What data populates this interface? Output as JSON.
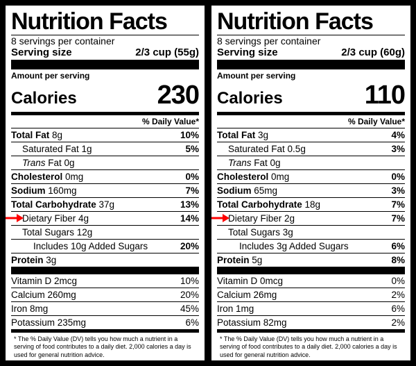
{
  "arrow_color": "#ff0000",
  "arrow_row_key": "fiber",
  "footnote": "* The % Daily Value (DV) tells you how much a nutrient in a serving of food contributes to a daily diet. 2,000 calories a day is used for general nutrition advice.",
  "labels": [
    {
      "title": "Nutrition Facts",
      "servings_per": "8 servings per container",
      "serving_size_label": "Serving size",
      "serving_size_value": "2/3 cup (55g)",
      "amount_per": "Amount per serving",
      "calories_label": "Calories",
      "calories": "230",
      "dv_header": "% Daily Value*",
      "rows": [
        {
          "k": "totfat",
          "bold": "Total Fat",
          "val": "8g",
          "pct": "10%"
        },
        {
          "k": "satfat",
          "indent": 1,
          "plain": "Saturated Fat 1g",
          "pct": "5%"
        },
        {
          "k": "trans",
          "indent": 1,
          "italic": "Trans",
          "plain_after": " Fat 0g"
        },
        {
          "k": "chol",
          "bold": "Cholesterol",
          "val": "0mg",
          "pct": "0%"
        },
        {
          "k": "sodium",
          "bold": "Sodium",
          "val": "160mg",
          "pct": "7%"
        },
        {
          "k": "carb",
          "bold": "Total Carbohydrate",
          "val": "37g",
          "pct": "13%"
        },
        {
          "k": "fiber",
          "indent": 1,
          "plain": "Dietary Fiber 4g",
          "pct": "14%"
        },
        {
          "k": "sugars",
          "indent": 1,
          "plain": "Total Sugars 12g"
        },
        {
          "k": "added",
          "indent": 2,
          "plain": "Includes 10g Added Sugars",
          "pct": "20%"
        },
        {
          "k": "protein",
          "bold": "Protein",
          "val": "3g"
        }
      ],
      "vitamins": [
        {
          "plain": "Vitamin D 2mcg",
          "pct": "10%"
        },
        {
          "plain": "Calcium 260mg",
          "pct": "20%"
        },
        {
          "plain": "Iron 8mg",
          "pct": "45%"
        },
        {
          "plain": "Potassium 235mg",
          "pct": "6%"
        }
      ]
    },
    {
      "title": "Nutrition Facts",
      "servings_per": "8 servings per container",
      "serving_size_label": "Serving size",
      "serving_size_value": "2/3 cup (60g)",
      "amount_per": "Amount per serving",
      "calories_label": "Calories",
      "calories": "110",
      "dv_header": "% Daily Value*",
      "rows": [
        {
          "k": "totfat",
          "bold": "Total Fat",
          "val": "3g",
          "pct": "4%"
        },
        {
          "k": "satfat",
          "indent": 1,
          "plain": "Saturated Fat 0.5g",
          "pct": "3%"
        },
        {
          "k": "trans",
          "indent": 1,
          "italic": "Trans",
          "plain_after": " Fat 0g"
        },
        {
          "k": "chol",
          "bold": "Cholesterol",
          "val": "0mg",
          "pct": "0%"
        },
        {
          "k": "sodium",
          "bold": "Sodium",
          "val": "65mg",
          "pct": "3%"
        },
        {
          "k": "carb",
          "bold": "Total Carbohydrate",
          "val": "18g",
          "pct": "7%"
        },
        {
          "k": "fiber",
          "indent": 1,
          "plain": "Dietary Fiber 2g",
          "pct": "7%"
        },
        {
          "k": "sugars",
          "indent": 1,
          "plain": "Total Sugars 3g"
        },
        {
          "k": "added",
          "indent": 2,
          "plain": "Includes 3g Added Sugars",
          "pct": "6%"
        },
        {
          "k": "protein",
          "bold": "Protein",
          "val": "5g",
          "pct": "8%"
        }
      ],
      "vitamins": [
        {
          "plain": "Vitamin D 0mcg",
          "pct": "0%"
        },
        {
          "plain": "Calcium 26mg",
          "pct": "2%"
        },
        {
          "plain": "Iron 1mg",
          "pct": "6%"
        },
        {
          "plain": "Potassium 82mg",
          "pct": "2%"
        }
      ]
    }
  ]
}
